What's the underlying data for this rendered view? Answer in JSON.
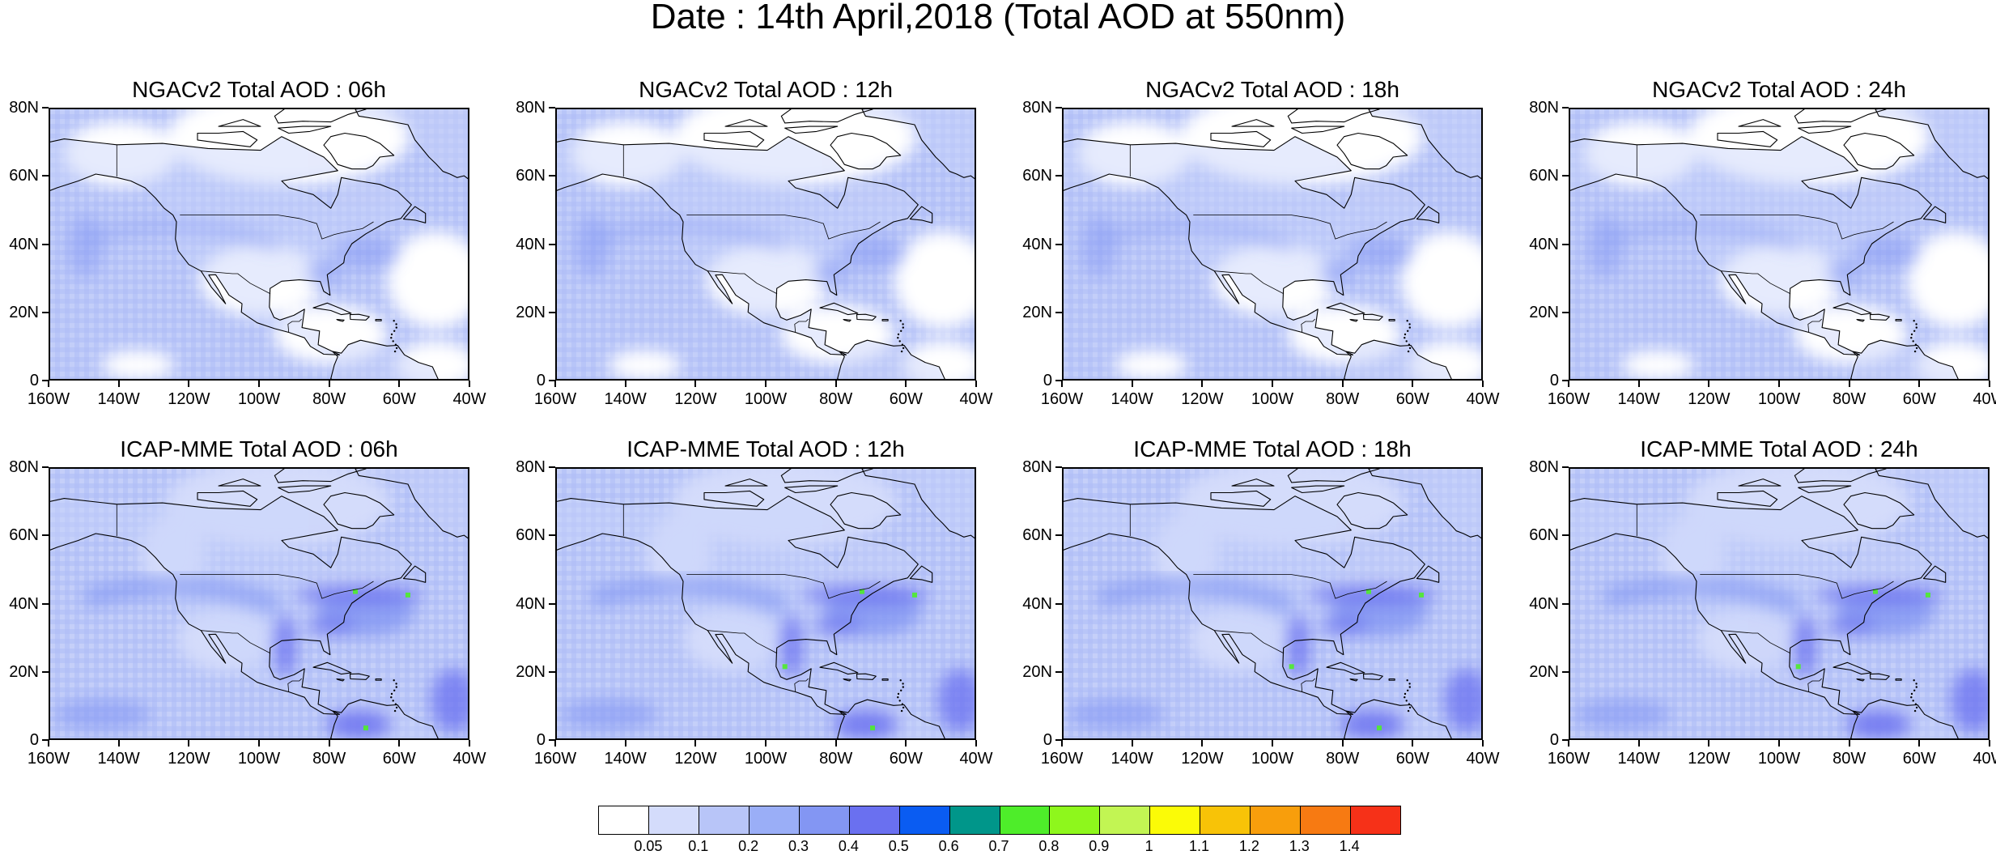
{
  "title": "Date : 14th April,2018 (Total AOD at 550nm)",
  "panels": [
    {
      "title": "NGACv2 Total AOD : 06h",
      "model": "NGACv2",
      "lead": "06h",
      "intensity": 0.16
    },
    {
      "title": "NGACv2 Total AOD : 12h",
      "model": "NGACv2",
      "lead": "12h",
      "intensity": 0.15
    },
    {
      "title": "NGACv2 Total AOD : 18h",
      "model": "NGACv2",
      "lead": "18h",
      "intensity": 0.17
    },
    {
      "title": "NGACv2 Total AOD : 24h",
      "model": "NGACv2",
      "lead": "24h",
      "intensity": 0.18
    },
    {
      "title": "ICAP-MME Total AOD : 06h",
      "model": "ICAP-MME",
      "lead": "06h",
      "intensity": 0.28
    },
    {
      "title": "ICAP-MME Total AOD : 12h",
      "model": "ICAP-MME",
      "lead": "12h",
      "intensity": 0.27
    },
    {
      "title": "ICAP-MME Total AOD : 18h",
      "model": "ICAP-MME",
      "lead": "18h",
      "intensity": 0.29
    },
    {
      "title": "ICAP-MME Total AOD : 24h",
      "model": "ICAP-MME",
      "lead": "24h",
      "intensity": 0.3
    }
  ],
  "axes": {
    "lon_labels": [
      "160W",
      "140W",
      "120W",
      "100W",
      "80W",
      "60W",
      "40W"
    ],
    "lat_labels": [
      "80N",
      "60N",
      "40N",
      "20N",
      "0"
    ],
    "lon_range": [
      -160,
      -40
    ],
    "lat_range": [
      0,
      80
    ]
  },
  "colorbar": {
    "levels": [
      "0.05",
      "0.1",
      "0.2",
      "0.3",
      "0.4",
      "0.5",
      "0.6",
      "0.7",
      "0.8",
      "0.9",
      "1",
      "1.1",
      "1.2",
      "1.3",
      "1.4"
    ],
    "colors": [
      "#ffffff",
      "#d4dcfb",
      "#b8c5f8",
      "#9aaef7",
      "#8396f3",
      "#6a70f0",
      "#0a5cf2",
      "#00968a",
      "#4eed2a",
      "#8ef71c",
      "#c2f553",
      "#fbfb07",
      "#f8c307",
      "#f89e0c",
      "#f77a12",
      "#f63118"
    ]
  },
  "map_colors": {
    "ocean_base": "#b8c5f8",
    "land_base": "#c8d2fa",
    "clear": "#ffffff",
    "plume_mid": "#8396f3",
    "plume_high": "#6a70f0",
    "plume_peak": "#4eed2a",
    "coast": "#000000"
  }
}
